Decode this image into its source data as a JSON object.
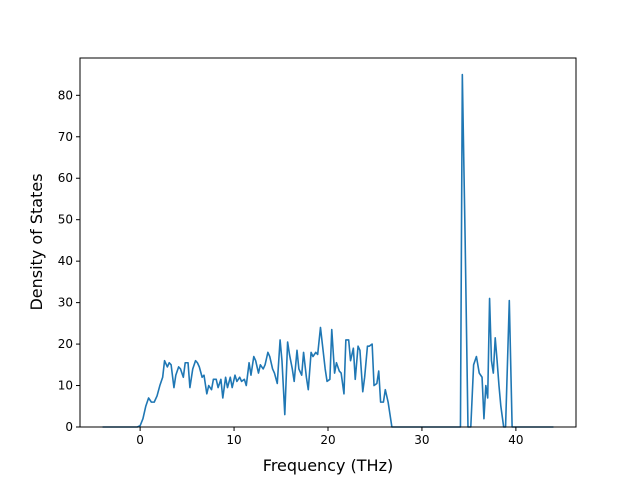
{
  "chart_data": {
    "type": "line",
    "xlabel": "Frequency (THz)",
    "ylabel": "Density of States",
    "xlim": [
      -6.4,
      46.4
    ],
    "ylim": [
      0,
      89
    ],
    "x_ticks": [
      0,
      10,
      20,
      30,
      40
    ],
    "y_ticks": [
      0,
      10,
      20,
      30,
      40,
      50,
      60,
      70,
      80
    ],
    "grid": false,
    "colors": {
      "line": "#1f77b4"
    },
    "series": [
      {
        "x": [
          -4.0,
          -3.0,
          -2.0,
          -1.0,
          -0.3,
          0.0,
          0.3,
          0.6,
          0.9,
          1.2,
          1.5,
          1.8,
          2.1,
          2.4,
          2.6,
          2.9,
          3.1,
          3.3,
          3.6,
          3.8,
          4.1,
          4.3,
          4.6,
          4.8,
          5.1,
          5.3,
          5.6,
          5.9,
          6.1,
          6.3,
          6.6,
          6.8,
          7.1,
          7.3,
          7.6,
          7.8,
          8.1,
          8.3,
          8.6,
          8.8,
          9.1,
          9.3,
          9.6,
          9.8,
          10.1,
          10.3,
          10.6,
          10.8,
          11.1,
          11.3,
          11.6,
          11.8,
          12.1,
          12.3,
          12.6,
          12.8,
          13.1,
          13.3,
          13.6,
          13.8,
          14.1,
          14.3,
          14.6,
          14.9,
          15.1,
          15.4,
          15.7,
          15.9,
          16.2,
          16.4,
          16.7,
          16.9,
          17.2,
          17.4,
          17.7,
          17.9,
          18.2,
          18.4,
          18.7,
          18.9,
          19.2,
          19.4,
          19.7,
          19.9,
          20.2,
          20.4,
          20.7,
          20.9,
          21.2,
          21.4,
          21.7,
          21.9,
          22.2,
          22.4,
          22.7,
          22.9,
          23.2,
          23.4,
          23.7,
          23.9,
          24.2,
          24.4,
          24.7,
          24.9,
          25.2,
          25.4,
          25.6,
          25.9,
          26.1,
          26.4,
          26.8,
          28.0,
          30.0,
          32.0,
          33.4,
          33.8,
          34.1,
          34.3,
          34.6,
          34.9,
          35.2,
          35.5,
          35.8,
          36.1,
          36.4,
          36.6,
          36.8,
          37.0,
          37.2,
          37.4,
          37.6,
          37.8,
          38.0,
          38.2,
          38.4,
          38.7,
          38.9,
          39.1,
          39.3,
          39.6,
          40.0,
          42.0,
          44.0
        ],
        "y": [
          0,
          0,
          0,
          0,
          0,
          0.3,
          2.0,
          5.0,
          7.0,
          6.0,
          6.0,
          7.5,
          10.0,
          12.0,
          16.0,
          14.5,
          15.5,
          15.0,
          9.5,
          12.5,
          14.5,
          14.0,
          12.0,
          15.5,
          15.5,
          9.5,
          14.0,
          16.0,
          15.5,
          14.5,
          12.0,
          12.5,
          8.0,
          10.0,
          9.0,
          11.5,
          11.5,
          9.5,
          11.5,
          7.0,
          12.0,
          9.5,
          12.0,
          9.5,
          12.5,
          11.0,
          12.0,
          11.0,
          11.5,
          10.0,
          15.5,
          12.5,
          17.0,
          16.0,
          13.0,
          15.0,
          14.0,
          15.0,
          18.0,
          17.0,
          14.0,
          13.0,
          10.5,
          21.0,
          16.0,
          3.0,
          20.5,
          17.5,
          14.0,
          11.0,
          18.5,
          14.0,
          12.5,
          18.0,
          12.0,
          9.0,
          18.0,
          17.0,
          18.0,
          17.5,
          24.0,
          20.0,
          14.0,
          11.0,
          11.5,
          23.5,
          13.0,
          15.5,
          13.5,
          13.0,
          8.0,
          21.0,
          21.0,
          16.0,
          19.0,
          11.5,
          19.5,
          18.5,
          8.5,
          12.0,
          19.5,
          19.5,
          20.0,
          10.0,
          10.5,
          13.5,
          6.0,
          6.0,
          9.0,
          6.0,
          0,
          0,
          0,
          0,
          0,
          0,
          0,
          85.0,
          45.0,
          0,
          0,
          15.0,
          17.0,
          13.0,
          12.0,
          2.0,
          10.0,
          7.0,
          31.0,
          16.0,
          13.0,
          21.5,
          16.0,
          10.0,
          5.0,
          0,
          0,
          15.0,
          30.5,
          0,
          0,
          0,
          0
        ]
      }
    ]
  }
}
